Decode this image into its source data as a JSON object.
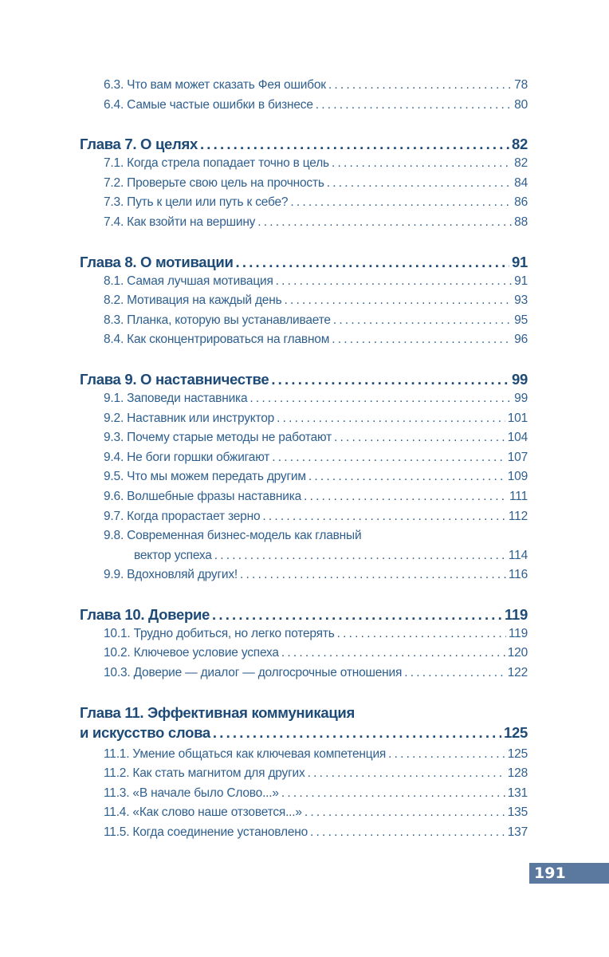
{
  "colors": {
    "chapter": "#1d4a77",
    "entry": "#2f5f8e",
    "page_badge": "#5b789e"
  },
  "page_number": "191",
  "toc": [
    {
      "title": null,
      "entries": [
        {
          "text": "6.3. Что вам может сказать Фея ошибок",
          "page": "78"
        },
        {
          "text": "6.4. Самые частые ошибки в бизнесе",
          "page": "80"
        }
      ]
    },
    {
      "title": [
        "Глава 7. О целях"
      ],
      "page": "82",
      "entries": [
        {
          "text": "7.1. Когда стрела попадает точно в цель",
          "page": "82"
        },
        {
          "text": "7.2. Проверьте свою цель на прочность",
          "page": "84"
        },
        {
          "text": "7.3. Путь к цели или путь к себе?",
          "page": "86"
        },
        {
          "text": "7.4. Как взойти на вершину",
          "page": "88"
        }
      ]
    },
    {
      "title": [
        "Глава 8. О мотивации"
      ],
      "page": "91",
      "entries": [
        {
          "text": "8.1. Самая лучшая мотивация",
          "page": "91"
        },
        {
          "text": "8.2. Мотивация на каждый день",
          "page": "93"
        },
        {
          "text": "8.3. Планка, которую вы устанавливаете",
          "page": "95"
        },
        {
          "text": "8.4. Как сконцентрироваться на главном",
          "page": "96"
        }
      ]
    },
    {
      "title": [
        "Глава 9. О наставничестве"
      ],
      "page": "99",
      "entries": [
        {
          "text": "9.1. Заповеди наставника",
          "page": "99"
        },
        {
          "text": "9.2. Наставник или инструктор",
          "page": "101"
        },
        {
          "text": "9.3. Почему старые методы не работают",
          "page": "104"
        },
        {
          "text": "9.4. Не боги горшки обжигают",
          "page": "107"
        },
        {
          "text": "9.5. Что мы можем передать другим",
          "page": "109"
        },
        {
          "text": "9.6. Волшебные фразы наставника",
          "page": "111"
        },
        {
          "text": "9.7. Когда прорастает зерно",
          "page": "112"
        },
        {
          "text": "9.8. Современная бизнес-модель как главный",
          "text2": "вектор успеха",
          "page": "114"
        },
        {
          "text": "9.9. Вдохновляй других!",
          "page": "116"
        }
      ]
    },
    {
      "title": [
        "Глава 10. Доверие"
      ],
      "page": "119",
      "entries": [
        {
          "text": "10.1. Трудно добиться, но легко потерять",
          "page": "119"
        },
        {
          "text": "10.2. Ключевое условие успеха",
          "page": "120"
        },
        {
          "text": "10.3. Доверие — диалог — долгосрочные отношения",
          "page": "122"
        }
      ]
    },
    {
      "title": [
        "Глава 11. Эффективная коммуникация",
        "и искусство слова"
      ],
      "page": "125",
      "entries": [
        {
          "text": "11.1. Умение общаться как ключевая компетенция",
          "page": "125"
        },
        {
          "text": "11.2. Как стать магнитом для других",
          "page": "128"
        },
        {
          "text": "11.3. «В начале было Слово...»",
          "page": "131"
        },
        {
          "text": "11.4. «Как слово наше отзовется...»",
          "page": "135"
        },
        {
          "text": "11.5. Когда соединение установлено",
          "page": "137"
        }
      ]
    }
  ]
}
